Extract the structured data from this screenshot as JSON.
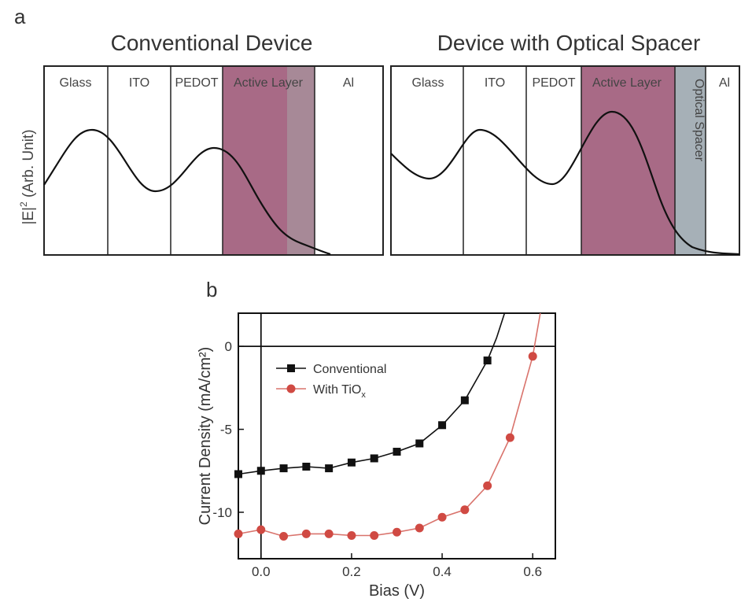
{
  "colors": {
    "active_layer": "#a86a86",
    "spacer": "#a6b0b7",
    "conventional": "#111111",
    "tiox": "#d04a43",
    "tiox_line": "#d9736c"
  },
  "panel_a": {
    "label": "a",
    "left": {
      "title": "Conventional Device",
      "layers": [
        "Glass",
        "ITO",
        "PEDOT",
        "Active Layer",
        "Al"
      ]
    },
    "right": {
      "title": "Device with Optical Spacer",
      "layers": [
        "Glass",
        "ITO",
        "PEDOT",
        "Active Layer",
        "Optical Spacer",
        "Al"
      ]
    },
    "ylabel_main": "|E|",
    "ylabel_sup": "2",
    "ylabel_rest": " (Arb. Unit)"
  },
  "panel_b": {
    "label": "b",
    "legend": {
      "conventional": "Conventional",
      "tiox_main": "With TiO",
      "tiox_sub": "x"
    }
  },
  "chart_data": [
    {
      "type": "line",
      "title": "Conventional Device",
      "ylabel": "|E|^2 (Arb. Unit)",
      "regions": [
        "Glass",
        "ITO",
        "PEDOT",
        "Active Layer",
        "Al"
      ],
      "x": [
        0,
        1,
        2,
        3,
        4,
        5,
        6,
        7,
        8,
        9,
        10,
        11,
        12,
        13,
        14,
        15,
        16,
        17,
        18,
        19,
        20
      ],
      "values": [
        0.6,
        0.75,
        0.87,
        0.9,
        0.82,
        0.68,
        0.55,
        0.5,
        0.56,
        0.7,
        0.8,
        0.78,
        0.65,
        0.45,
        0.3,
        0.2,
        0.12,
        0.07,
        0.04,
        0.02,
        0.01
      ]
    },
    {
      "type": "line",
      "title": "Device with Optical Spacer",
      "ylabel": "|E|^2 (Arb. Unit)",
      "regions": [
        "Glass",
        "ITO",
        "PEDOT",
        "Active Layer",
        "Optical Spacer",
        "Al"
      ],
      "x": [
        0,
        1,
        2,
        3,
        4,
        5,
        6,
        7,
        8,
        9,
        10,
        11,
        12,
        13,
        14,
        15,
        16,
        17,
        18,
        19,
        20
      ],
      "values": [
        0.7,
        0.62,
        0.68,
        0.85,
        0.92,
        0.8,
        0.62,
        0.56,
        0.64,
        0.8,
        0.95,
        0.98,
        0.85,
        0.6,
        0.35,
        0.18,
        0.09,
        0.05,
        0.03,
        0.02,
        0.01
      ]
    },
    {
      "type": "line",
      "xlabel": "Bias (V)",
      "ylabel": "Current Density (mA/cm²)",
      "xlim": [
        -0.05,
        0.65
      ],
      "ylim": [
        -12.8,
        2
      ],
      "xticks": [
        "0.0",
        "0.2",
        "0.4",
        "0.6"
      ],
      "yticks": [
        "0",
        "-5",
        "-10"
      ],
      "series": [
        {
          "name": "Conventional",
          "x": [
            -0.05,
            0.0,
            0.05,
            0.1,
            0.15,
            0.2,
            0.25,
            0.3,
            0.35,
            0.4,
            0.45,
            0.5
          ],
          "y": [
            -7.7,
            -7.5,
            -7.35,
            -7.25,
            -7.35,
            -7.0,
            -6.75,
            -6.35,
            -5.85,
            -4.75,
            -3.25,
            -0.85
          ]
        },
        {
          "name": "With TiOx",
          "x": [
            -0.05,
            0.0,
            0.05,
            0.1,
            0.15,
            0.2,
            0.25,
            0.3,
            0.35,
            0.4,
            0.45,
            0.5,
            0.55,
            0.6
          ],
          "y": [
            -11.3,
            -11.05,
            -11.45,
            -11.3,
            -11.3,
            -11.4,
            -11.4,
            -11.2,
            -10.95,
            -10.3,
            -9.85,
            -8.4,
            -5.5,
            -0.6
          ]
        }
      ]
    }
  ]
}
